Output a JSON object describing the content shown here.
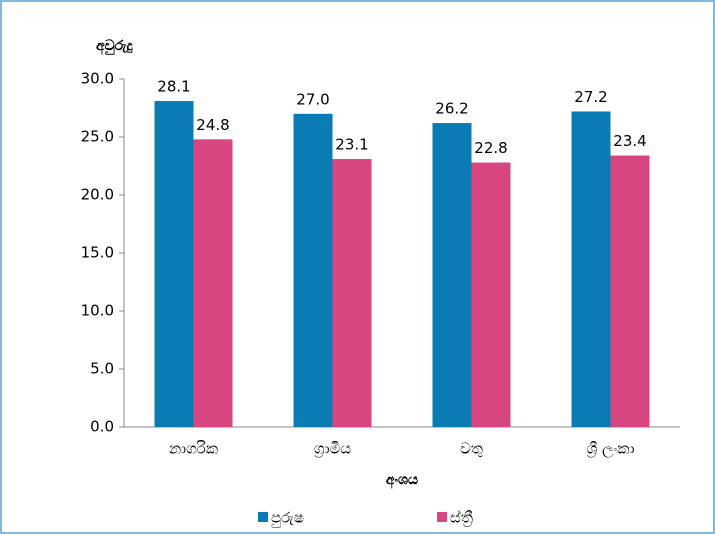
{
  "chart_data": {
    "type": "bar",
    "y_label": "අවුරුදු",
    "x_label": "අංශය",
    "categories": [
      "නාගරික",
      "ග්‍රාමීය",
      "වතු",
      "ශ්‍රී ලංකා"
    ],
    "series": [
      {
        "name": "පුරුෂ",
        "color": "#0a7bb3",
        "values": [
          28.1,
          27.0,
          26.2,
          27.2
        ],
        "value_labels": [
          "28.1",
          "27.0",
          "26.2",
          "27.2"
        ]
      },
      {
        "name": "ස්ත්‍රී",
        "color": "#d84682",
        "values": [
          24.8,
          23.1,
          22.8,
          23.4
        ],
        "value_labels": [
          "24.8",
          "23.1",
          "22.8",
          "23.4"
        ]
      }
    ],
    "ylim": [
      0,
      30
    ],
    "yticks": [
      {
        "value": 0,
        "label": "0.0"
      },
      {
        "value": 5,
        "label": "5.0"
      },
      {
        "value": 10,
        "label": "10.0"
      },
      {
        "value": 15,
        "label": "15.0"
      },
      {
        "value": 20,
        "label": "20.0"
      },
      {
        "value": 25,
        "label": "25.0"
      },
      {
        "value": 30,
        "label": "30.0"
      }
    ],
    "legend": "bottom"
  }
}
